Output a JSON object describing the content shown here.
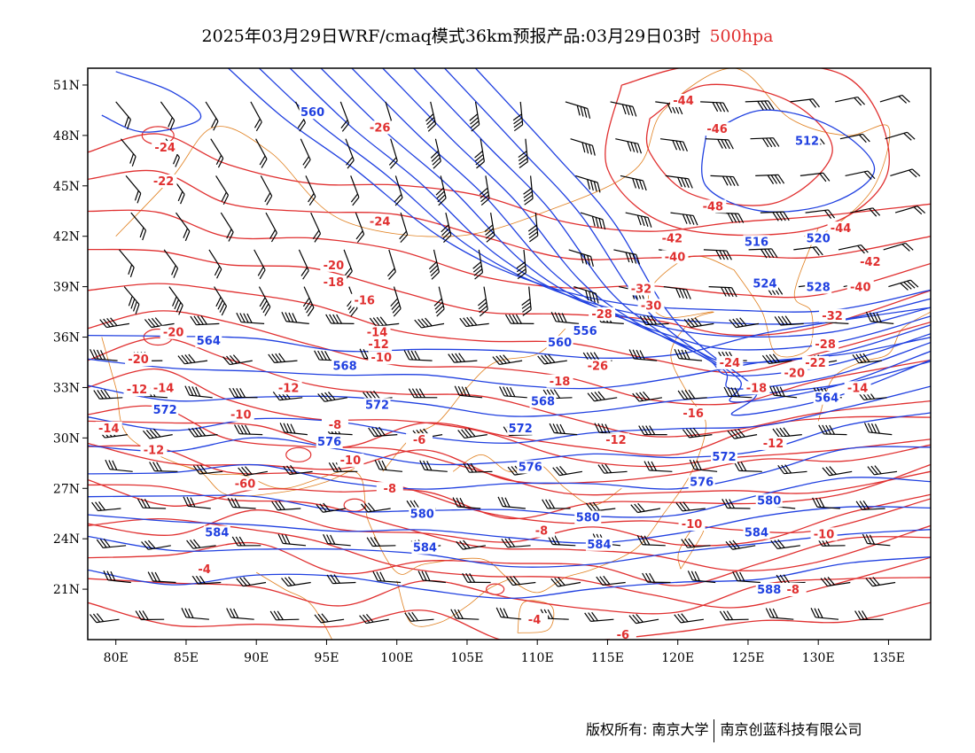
{
  "title": {
    "main": "2025年03月29日WRF/cmaq模式36km预报产品:03月29日03时",
    "level": "500hpa"
  },
  "axes": {
    "lat_ticks": [
      "51N",
      "48N",
      "45N",
      "42N",
      "39N",
      "36N",
      "33N",
      "30N",
      "27N",
      "24N",
      "21N"
    ],
    "lon_ticks": [
      "80E",
      "85E",
      "90E",
      "95E",
      "100E",
      "105E",
      "110E",
      "115E",
      "120E",
      "125E",
      "130E",
      "135E"
    ]
  },
  "colors": {
    "height_contours": "#2040e0",
    "temperature_contours": "#e03030",
    "boundaries": "#e08020",
    "wind_barbs": "#000000"
  },
  "height_labels": [
    {
      "text": "560",
      "lon": 94,
      "lat": 49.3
    },
    {
      "text": "512",
      "lon": 129.2,
      "lat": 47.6
    },
    {
      "text": "516",
      "lon": 125.6,
      "lat": 41.6
    },
    {
      "text": "520",
      "lon": 130,
      "lat": 41.8
    },
    {
      "text": "524",
      "lon": 126.2,
      "lat": 39.1
    },
    {
      "text": "528",
      "lon": 130,
      "lat": 38.9
    },
    {
      "text": "564",
      "lon": 86.6,
      "lat": 35.7
    },
    {
      "text": "568",
      "lon": 96.3,
      "lat": 34.2
    },
    {
      "text": "560",
      "lon": 111.6,
      "lat": 35.6
    },
    {
      "text": "556",
      "lon": 113.4,
      "lat": 36.3
    },
    {
      "text": "572",
      "lon": 83.5,
      "lat": 31.6
    },
    {
      "text": "572",
      "lon": 98.6,
      "lat": 31.9
    },
    {
      "text": "568",
      "lon": 110.4,
      "lat": 32.1
    },
    {
      "text": "572",
      "lon": 108.8,
      "lat": 30.5
    },
    {
      "text": "564",
      "lon": 130.6,
      "lat": 32.3
    },
    {
      "text": "576",
      "lon": 95.2,
      "lat": 29.7
    },
    {
      "text": "576",
      "lon": 109.5,
      "lat": 28.2
    },
    {
      "text": "572",
      "lon": 123.3,
      "lat": 28.8
    },
    {
      "text": "576",
      "lon": 121.7,
      "lat": 27.3
    },
    {
      "text": "580",
      "lon": 126.5,
      "lat": 26.2
    },
    {
      "text": "580",
      "lon": 101.8,
      "lat": 25.4
    },
    {
      "text": "580",
      "lon": 113.6,
      "lat": 25.2
    },
    {
      "text": "584",
      "lon": 87.2,
      "lat": 24.3
    },
    {
      "text": "584",
      "lon": 102,
      "lat": 23.4
    },
    {
      "text": "584",
      "lon": 114.4,
      "lat": 23.6
    },
    {
      "text": "584",
      "lon": 125.6,
      "lat": 24.3
    },
    {
      "text": "588",
      "lon": 126.5,
      "lat": 20.9
    }
  ],
  "temperature_labels": [
    {
      "text": "-24",
      "lon": 83.5,
      "lat": 47.2
    },
    {
      "text": "-22",
      "lon": 83.4,
      "lat": 45.2
    },
    {
      "text": "-26",
      "lon": 98.8,
      "lat": 48.4
    },
    {
      "text": "-44",
      "lon": 120.4,
      "lat": 50
    },
    {
      "text": "-46",
      "lon": 122.8,
      "lat": 48.3
    },
    {
      "text": "-48",
      "lon": 122.5,
      "lat": 43.7
    },
    {
      "text": "-24",
      "lon": 98.8,
      "lat": 42.8
    },
    {
      "text": "-42",
      "lon": 119.6,
      "lat": 41.8
    },
    {
      "text": "-40",
      "lon": 119.8,
      "lat": 40.7
    },
    {
      "text": "-44",
      "lon": 131.6,
      "lat": 42.4
    },
    {
      "text": "-42",
      "lon": 133.7,
      "lat": 40.4
    },
    {
      "text": "-40",
      "lon": 133,
      "lat": 38.9
    },
    {
      "text": "-20",
      "lon": 95.5,
      "lat": 40.2
    },
    {
      "text": "-18",
      "lon": 95.5,
      "lat": 39.2
    },
    {
      "text": "-16",
      "lon": 97.7,
      "lat": 38.1
    },
    {
      "text": "-32",
      "lon": 117.4,
      "lat": 38.8
    },
    {
      "text": "-30",
      "lon": 118.1,
      "lat": 37.8
    },
    {
      "text": "-28",
      "lon": 114.6,
      "lat": 37.3
    },
    {
      "text": "-32",
      "lon": 131,
      "lat": 37.2
    },
    {
      "text": "-20",
      "lon": 84.1,
      "lat": 36.2
    },
    {
      "text": "-14",
      "lon": 98.6,
      "lat": 36.2
    },
    {
      "text": "-12",
      "lon": 98.7,
      "lat": 35.5
    },
    {
      "text": "-10",
      "lon": 98.9,
      "lat": 34.7
    },
    {
      "text": "-28",
      "lon": 130.5,
      "lat": 35.5
    },
    {
      "text": "-20",
      "lon": 81.6,
      "lat": 34.6
    },
    {
      "text": "-26",
      "lon": 114.3,
      "lat": 34.2
    },
    {
      "text": "-24",
      "lon": 123.7,
      "lat": 34.4
    },
    {
      "text": "-22",
      "lon": 129.8,
      "lat": 34.4
    },
    {
      "text": "-20",
      "lon": 128.3,
      "lat": 33.8
    },
    {
      "text": "-18",
      "lon": 111.6,
      "lat": 33.3
    },
    {
      "text": "-18",
      "lon": 125.6,
      "lat": 32.9
    },
    {
      "text": "-14",
      "lon": 132.8,
      "lat": 32.9
    },
    {
      "text": "-12",
      "lon": 81.5,
      "lat": 32.8
    },
    {
      "text": "-14",
      "lon": 83.4,
      "lat": 32.9
    },
    {
      "text": "-12",
      "lon": 92.3,
      "lat": 32.9
    },
    {
      "text": "-10",
      "lon": 88.9,
      "lat": 31.3
    },
    {
      "text": "-16",
      "lon": 121.1,
      "lat": 31.4
    },
    {
      "text": "-8",
      "lon": 95.6,
      "lat": 30.7
    },
    {
      "text": "-14",
      "lon": 79.5,
      "lat": 30.5
    },
    {
      "text": "-6",
      "lon": 101.6,
      "lat": 29.8
    },
    {
      "text": "-12",
      "lon": 115.6,
      "lat": 29.8
    },
    {
      "text": "-12",
      "lon": 126.8,
      "lat": 29.6
    },
    {
      "text": "-12",
      "lon": 82.7,
      "lat": 29.2
    },
    {
      "text": "-10",
      "lon": 96.7,
      "lat": 28.6
    },
    {
      "text": "-60",
      "lon": 89.2,
      "lat": 27.2
    },
    {
      "text": "-8",
      "lon": 99.5,
      "lat": 26.9
    },
    {
      "text": "-10",
      "lon": 121,
      "lat": 24.8
    },
    {
      "text": "-8",
      "lon": 110.3,
      "lat": 24.4
    },
    {
      "text": "-10",
      "lon": 130.4,
      "lat": 24.2
    },
    {
      "text": "-4",
      "lon": 86.3,
      "lat": 22.1
    },
    {
      "text": "-8",
      "lon": 128.2,
      "lat": 20.9
    },
    {
      "text": "-4",
      "lon": 109.8,
      "lat": 19.1
    },
    {
      "text": "-6",
      "lon": 116.1,
      "lat": 18.2
    }
  ],
  "footer": {
    "copyright": "版权所有: 南京大学",
    "company": "南京创蓝科技有限公司"
  }
}
